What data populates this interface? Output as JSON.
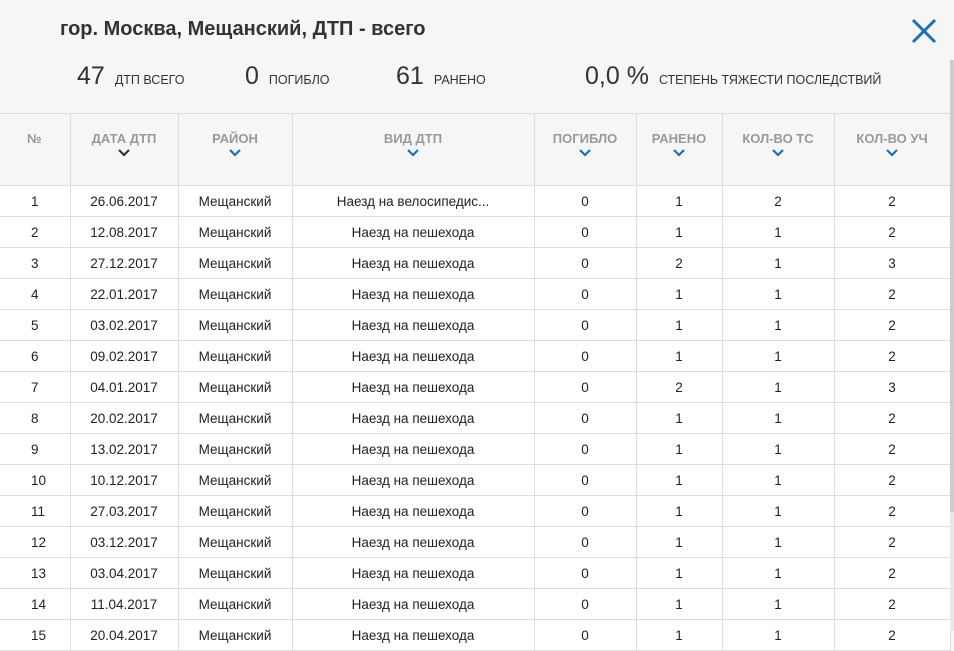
{
  "title": "гор. Москва, Мещанский, ДТП - всего",
  "stats": {
    "total": {
      "value": "47",
      "label": "ДТП ВСЕГО"
    },
    "dead": {
      "value": "0",
      "label": "ПОГИБЛО"
    },
    "injured": {
      "value": "61",
      "label": "РАНЕНО"
    },
    "severity": {
      "value": "0,0 %",
      "label": "СТЕПЕНЬ ТЯЖЕСТИ ПОСЛЕДСТВИЙ"
    }
  },
  "colors": {
    "accent": "#1a6fb5",
    "sort_active": "#333333"
  },
  "table": {
    "headers": [
      "№",
      "ДАТА ДТП",
      "РАЙОН",
      "ВИД ДТП",
      "ПОГИБЛО",
      "РАНЕНО",
      "КОЛ-ВО ТС",
      "КОЛ-ВО УЧ"
    ],
    "rows": [
      [
        "1",
        "26.06.2017",
        "Мещанский",
        "Наезд на велосипедис...",
        "0",
        "1",
        "2",
        "2"
      ],
      [
        "2",
        "12.08.2017",
        "Мещанский",
        "Наезд на пешехода",
        "0",
        "1",
        "1",
        "2"
      ],
      [
        "3",
        "27.12.2017",
        "Мещанский",
        "Наезд на пешехода",
        "0",
        "2",
        "1",
        "3"
      ],
      [
        "4",
        "22.01.2017",
        "Мещанский",
        "Наезд на пешехода",
        "0",
        "1",
        "1",
        "2"
      ],
      [
        "5",
        "03.02.2017",
        "Мещанский",
        "Наезд на пешехода",
        "0",
        "1",
        "1",
        "2"
      ],
      [
        "6",
        "09.02.2017",
        "Мещанский",
        "Наезд на пешехода",
        "0",
        "1",
        "1",
        "2"
      ],
      [
        "7",
        "04.01.2017",
        "Мещанский",
        "Наезд на пешехода",
        "0",
        "2",
        "1",
        "3"
      ],
      [
        "8",
        "20.02.2017",
        "Мещанский",
        "Наезд на пешехода",
        "0",
        "1",
        "1",
        "2"
      ],
      [
        "9",
        "13.02.2017",
        "Мещанский",
        "Наезд на пешехода",
        "0",
        "1",
        "1",
        "2"
      ],
      [
        "10",
        "10.12.2017",
        "Мещанский",
        "Наезд на пешехода",
        "0",
        "1",
        "1",
        "2"
      ],
      [
        "11",
        "27.03.2017",
        "Мещанский",
        "Наезд на пешехода",
        "0",
        "1",
        "1",
        "2"
      ],
      [
        "12",
        "03.12.2017",
        "Мещанский",
        "Наезд на пешехода",
        "0",
        "1",
        "1",
        "2"
      ],
      [
        "13",
        "03.04.2017",
        "Мещанский",
        "Наезд на пешехода",
        "0",
        "1",
        "1",
        "2"
      ],
      [
        "14",
        "11.04.2017",
        "Мещанский",
        "Наезд на пешехода",
        "0",
        "1",
        "1",
        "2"
      ],
      [
        "15",
        "20.04.2017",
        "Мещанский",
        "Наезд на пешехода",
        "0",
        "1",
        "1",
        "2"
      ]
    ]
  }
}
